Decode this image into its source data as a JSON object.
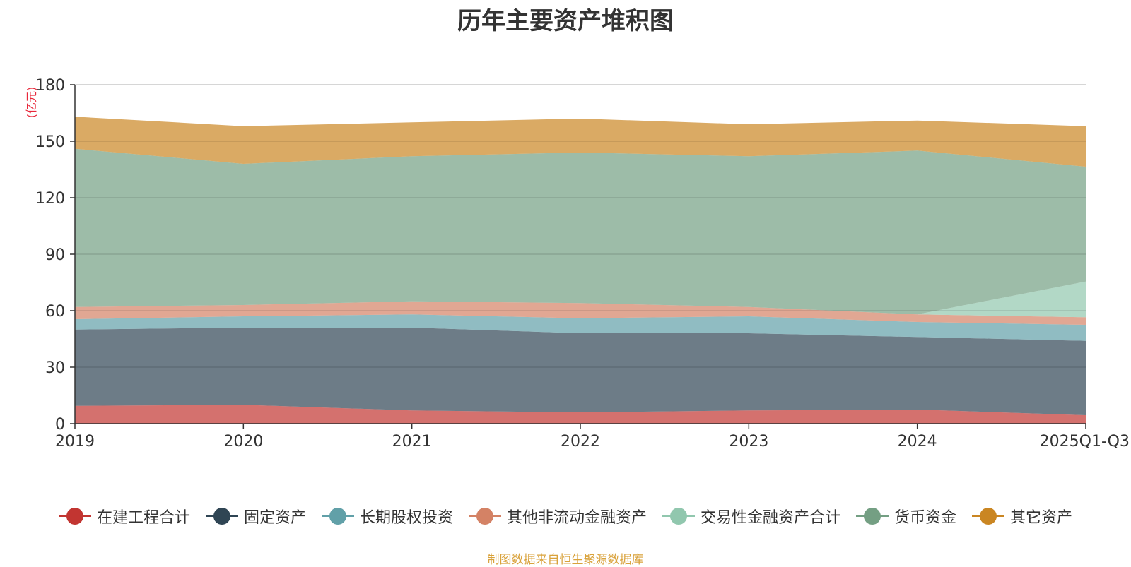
{
  "chart_data": {
    "type": "area",
    "stacked": true,
    "title": "历年主要资产堆积图",
    "ylabel": "(亿元)",
    "xlabel": "",
    "ylim": [
      0,
      180
    ],
    "yticks": [
      "0",
      "30",
      "60",
      "90",
      "120",
      "150",
      "180"
    ],
    "categories": [
      "2019",
      "2020",
      "2021",
      "2022",
      "2023",
      "2024",
      "2025Q1-Q3"
    ],
    "series": [
      {
        "name": "在建工程合计",
        "color": "#c23531",
        "values": [
          9.5,
          10.0,
          7.0,
          6.0,
          7.0,
          7.5,
          4.5
        ]
      },
      {
        "name": "固定资产",
        "color": "#2f4554",
        "values": [
          40.5,
          41.0,
          44.0,
          42.0,
          41.0,
          38.5,
          39.5
        ]
      },
      {
        "name": "长期股权投资",
        "color": "#61a0a8",
        "values": [
          5.5,
          6.0,
          7.0,
          8.0,
          9.0,
          8.0,
          8.5
        ]
      },
      {
        "name": "其他非流动金融资产",
        "color": "#d48265",
        "values": [
          6.5,
          6.0,
          7.0,
          8.0,
          5.0,
          4.0,
          4.0
        ]
      },
      {
        "name": "交易性金融资产合计",
        "color": "#91c7ae",
        "values": [
          0,
          0,
          0,
          0,
          0,
          0,
          19.0
        ]
      },
      {
        "name": "货币资金",
        "color": "#749f83",
        "values": [
          84.0,
          75.0,
          77.0,
          80.0,
          80.0,
          87.0,
          61.0
        ]
      },
      {
        "name": "其它资产",
        "color": "#ca8622",
        "values": [
          17.0,
          20.0,
          18.0,
          18.0,
          17.0,
          16.0,
          21.5
        ]
      }
    ]
  },
  "legend": {
    "items": [
      "在建工程合计",
      "固定资产",
      "长期股权投资",
      "其他非流动金融资产",
      "交易性金融资产合计",
      "货币资金",
      "其它资产"
    ]
  },
  "footer": {
    "source": "制图数据来自恒生聚源数据库"
  },
  "colors": {
    "axis": "#333333",
    "grid": "#cccccc",
    "unit_label": "#e8283b",
    "source": "#d9a23b"
  }
}
